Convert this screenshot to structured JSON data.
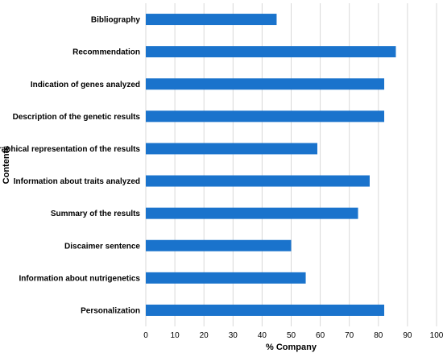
{
  "chart_data": {
    "type": "bar",
    "orientation": "horizontal",
    "categories": [
      "Bibliography",
      "Recommendation",
      "Indication of genes analyzed",
      "Description of the genetic results",
      "Graphical representation of the results",
      "Information about traits analyzed",
      "Summary of the results",
      "Discaimer sentence",
      "Information about nutrigenetics",
      "Personalization"
    ],
    "values": [
      45,
      86,
      82,
      82,
      59,
      77,
      73,
      50,
      55,
      82
    ],
    "xlabel": "% Company",
    "ylabel": "Contents",
    "xlim": [
      0,
      100
    ],
    "xticks": [
      "0",
      "10",
      "20",
      "30",
      "40",
      "50",
      "60",
      "70",
      "80",
      "90",
      "100"
    ],
    "grid": "vertical",
    "bar_color": "#1a73cc",
    "grid_color": "#d9d9d9"
  }
}
